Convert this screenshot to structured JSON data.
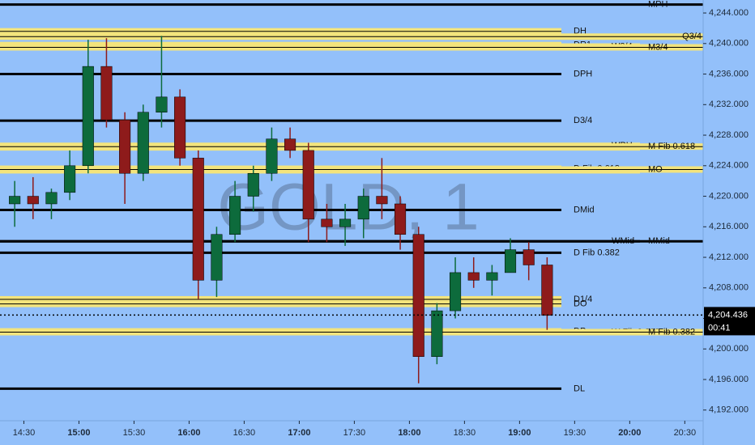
{
  "chart_data": {
    "type": "candlestick",
    "watermark": "GOLD, 1",
    "x": [
      "14:20",
      "14:30",
      "14:40",
      "14:50",
      "15:00",
      "15:10",
      "15:20",
      "15:30",
      "15:40",
      "15:50",
      "16:00",
      "16:10",
      "16:20",
      "16:30",
      "16:40",
      "16:50",
      "17:00",
      "17:10",
      "17:20",
      "17:30",
      "17:40",
      "17:50",
      "18:00",
      "18:10",
      "18:20",
      "18:30",
      "18:40",
      "18:50",
      "19:00",
      "19:10"
    ],
    "open": [
      4219,
      4220,
      4219,
      4220.5,
      4224,
      4237,
      4230,
      4223,
      4231,
      4233,
      4225,
      4209,
      4215,
      4220,
      4223,
      4227.5,
      4226,
      4217,
      4216,
      4217,
      4220,
      4219,
      4215,
      4199,
      4205,
      4210,
      4209,
      4210,
      4213,
      4211
    ],
    "high": [
      4222,
      4222.5,
      4221,
      4226,
      4240.5,
      4240.7,
      4231,
      4232,
      4241,
      4234,
      4226,
      4216,
      4222,
      4224,
      4229,
      4229,
      4227,
      4219,
      4219,
      4221,
      4225,
      4220,
      4216,
      4206,
      4212,
      4212,
      4211,
      4214.5,
      4214,
      4212
    ],
    "low": [
      4216,
      4217,
      4217,
      4219.5,
      4223,
      4229,
      4219,
      4222,
      4229,
      4224,
      4206.5,
      4206.8,
      4214,
      4218,
      4222,
      4225,
      4214,
      4214,
      4213.5,
      4214.5,
      4217,
      4213,
      4195.5,
      4198,
      4204,
      4208,
      4207,
      4210,
      4209,
      4202.5
    ],
    "close": [
      4220,
      4219,
      4220.5,
      4224,
      4237,
      4230,
      4223,
      4231,
      4233,
      4225,
      4209,
      4215,
      4220,
      4223,
      4227.5,
      4226,
      4217,
      4216,
      4217,
      4220,
      4219,
      4215,
      4199,
      4205,
      4210,
      4209,
      4210,
      4213,
      4211,
      4204.4
    ],
    "up_color": "#0d6b3c",
    "down_color": "#8e1b1b",
    "xlim": [
      "14:17",
      "20:40"
    ],
    "xticks": [
      "14:30",
      "15:00",
      "15:30",
      "16:00",
      "16:30",
      "17:00",
      "17:30",
      "18:00",
      "18:30",
      "19:00",
      "19:30",
      "20:00",
      "20:30"
    ],
    "ylim": [
      4190.6,
      4245.7
    ],
    "yticks": [
      {
        "value": 4192,
        "label": "4,192.000"
      },
      {
        "value": 4196,
        "label": "4,196.000"
      },
      {
        "value": 4200,
        "label": "4,200.000"
      },
      {
        "value": 4204,
        "label": "4,204.000"
      },
      {
        "value": 4208,
        "label": "4,208.000"
      },
      {
        "value": 4212,
        "label": "4,212.000"
      },
      {
        "value": 4216,
        "label": "4,216.000"
      },
      {
        "value": 4220,
        "label": "4,220.000"
      },
      {
        "value": 4224,
        "label": "4,224.000"
      },
      {
        "value": 4228,
        "label": "4,228.000"
      },
      {
        "value": 4232,
        "label": "4,232.000"
      },
      {
        "value": 4236,
        "label": "4,236.000"
      },
      {
        "value": 4240,
        "label": "4,240.000"
      },
      {
        "value": 4244,
        "label": "4,244.000"
      }
    ],
    "last_price": {
      "value": 4204.436,
      "label": "4,204.436"
    },
    "countdown": "00:41",
    "daily_levels": [
      {
        "name": "DH",
        "value": 4241.6,
        "color": "#f3e47c"
      },
      {
        "name": "DR1",
        "value": 4239.8,
        "color": "#f3e47c"
      },
      {
        "name": "DPH",
        "value": 4236,
        "color": "#000000"
      },
      {
        "name": "D3/4",
        "value": 4229.9,
        "color": "#000000"
      },
      {
        "name": "D Fib 0.618",
        "value": 4223.6,
        "color": "#f3e47c"
      },
      {
        "name": "DMid",
        "value": 4218.2,
        "color": "#000000"
      },
      {
        "name": "D Fib 0.382",
        "value": 4212.6,
        "color": "#000000"
      },
      {
        "name": "D1/4",
        "value": 4206.5,
        "color": "#f3e47c"
      },
      {
        "name": "DO",
        "value": 4205.9,
        "color": "#f3e47c"
      },
      {
        "name": "DP",
        "value": 4202.3,
        "color": "#f3e47c"
      },
      {
        "name": "DL",
        "value": 4194.8,
        "color": "#000000"
      }
    ],
    "weekly_levels": [
      {
        "name": "W3/4",
        "value": 4239.6,
        "color": "#f3e47c"
      },
      {
        "name": "WPH",
        "value": 4226.6,
        "color": "#f3e47c"
      },
      {
        "name": "W Fib 0.618",
        "value": 4226.4,
        "color": "#f3e47c"
      },
      {
        "name": "WO",
        "value": 4223.4,
        "color": "#f3e47c"
      },
      {
        "name": "WMid",
        "value": 4214.1,
        "color": "#000000"
      },
      {
        "name": "W Fib 0.382",
        "value": 4202.2,
        "color": "#f3e47c"
      }
    ],
    "monthly_levels": [
      {
        "name": "MPH",
        "value": 4245.1,
        "color": "#000000"
      },
      {
        "name": "M3/4",
        "value": 4239.5,
        "color": "#f3e47c"
      },
      {
        "name": "M Fib 0.618",
        "value": 4226.5,
        "color": "#f3e47c"
      },
      {
        "name": "MO",
        "value": 4223.5,
        "color": "#f3e47c"
      },
      {
        "name": "MMid",
        "value": 4214.1,
        "color": "#000000"
      },
      {
        "name": "M Fib 0.382",
        "value": 4202.2,
        "color": "#f3e47c"
      }
    ],
    "quarterly_levels": [
      {
        "name": "Q3/4",
        "value": 4240.9,
        "color": "#f3e47c"
      }
    ]
  }
}
